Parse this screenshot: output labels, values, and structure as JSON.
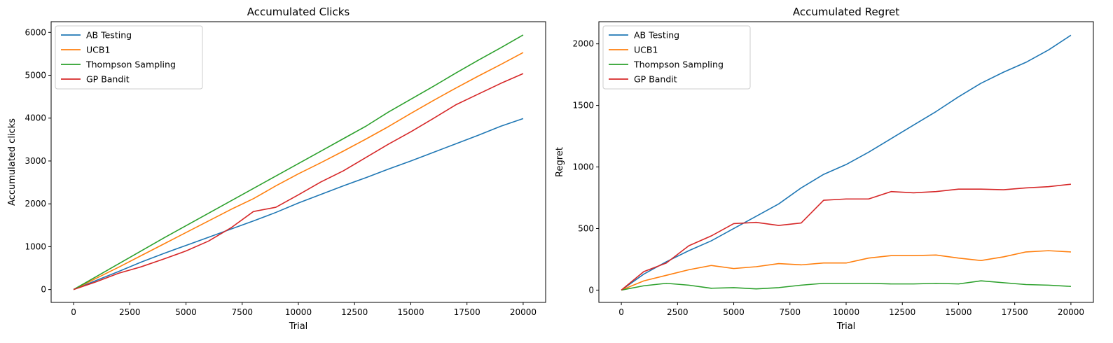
{
  "chart_data": [
    {
      "type": "line",
      "title": "Accumulated Clicks",
      "xlabel": "Trial",
      "ylabel": "Accumulated clicks",
      "xlim": [
        -1000,
        21000
      ],
      "ylim": [
        -300,
        6250
      ],
      "xticks": [
        0,
        2500,
        5000,
        7500,
        10000,
        12500,
        15000,
        17500,
        20000
      ],
      "yticks": [
        0,
        1000,
        2000,
        3000,
        4000,
        5000,
        6000
      ],
      "grid": false,
      "legend_position": "top-left",
      "x": [
        0,
        1000,
        2000,
        3000,
        4000,
        5000,
        6000,
        7000,
        8000,
        9000,
        10000,
        11000,
        12000,
        13000,
        14000,
        15000,
        16000,
        17000,
        18000,
        19000,
        20000
      ],
      "series": [
        {
          "name": "AB Testing",
          "color": "#1f77b4",
          "values": [
            0,
            210,
            420,
            640,
            840,
            1030,
            1220,
            1410,
            1600,
            1800,
            2020,
            2220,
            2420,
            2610,
            2810,
            3000,
            3200,
            3400,
            3600,
            3810,
            3990
          ]
        },
        {
          "name": "UCB1",
          "color": "#ff7f0e",
          "values": [
            0,
            260,
            520,
            790,
            1060,
            1330,
            1600,
            1870,
            2120,
            2420,
            2700,
            2960,
            3230,
            3510,
            3800,
            4110,
            4410,
            4700,
            4980,
            5250,
            5530
          ]
        },
        {
          "name": "Thompson Sampling",
          "color": "#2ca02c",
          "values": [
            0,
            300,
            600,
            900,
            1200,
            1490,
            1780,
            2070,
            2360,
            2650,
            2940,
            3230,
            3520,
            3810,
            4140,
            4440,
            4740,
            5050,
            5350,
            5640,
            5940
          ]
        },
        {
          "name": "GP Bandit",
          "color": "#d62728",
          "values": [
            0,
            180,
            380,
            530,
            710,
            900,
            1130,
            1440,
            1820,
            1920,
            2210,
            2510,
            2770,
            3080,
            3390,
            3680,
            3990,
            4310,
            4560,
            4810,
            5040
          ]
        }
      ]
    },
    {
      "type": "line",
      "title": "Accumulated Regret",
      "xlabel": "Trial",
      "ylabel": "Regret",
      "xlim": [
        -1000,
        21000
      ],
      "ylim": [
        -100,
        2180
      ],
      "xticks": [
        0,
        2500,
        5000,
        7500,
        10000,
        12500,
        15000,
        17500,
        20000
      ],
      "yticks": [
        0,
        500,
        1000,
        1500,
        2000
      ],
      "grid": false,
      "legend_position": "top-left",
      "x": [
        0,
        1000,
        2000,
        3000,
        4000,
        5000,
        6000,
        7000,
        8000,
        9000,
        10000,
        11000,
        12000,
        13000,
        14000,
        15000,
        16000,
        17000,
        18000,
        19000,
        20000
      ],
      "series": [
        {
          "name": "AB Testing",
          "color": "#1f77b4",
          "values": [
            0,
            130,
            230,
            320,
            400,
            500,
            600,
            700,
            830,
            940,
            1020,
            1120,
            1230,
            1340,
            1450,
            1570,
            1680,
            1770,
            1850,
            1950,
            2070
          ]
        },
        {
          "name": "UCB1",
          "color": "#ff7f0e",
          "values": [
            0,
            75,
            120,
            165,
            200,
            175,
            190,
            215,
            205,
            220,
            220,
            260,
            280,
            280,
            285,
            260,
            240,
            270,
            310,
            320,
            310
          ]
        },
        {
          "name": "Thompson Sampling",
          "color": "#2ca02c",
          "values": [
            0,
            35,
            55,
            40,
            15,
            20,
            10,
            20,
            40,
            55,
            55,
            55,
            50,
            50,
            55,
            50,
            75,
            60,
            45,
            40,
            30
          ]
        },
        {
          "name": "GP Bandit",
          "color": "#d62728",
          "values": [
            0,
            150,
            220,
            360,
            440,
            540,
            550,
            525,
            545,
            730,
            740,
            740,
            800,
            790,
            800,
            820,
            820,
            815,
            830,
            840,
            860
          ]
        }
      ]
    }
  ]
}
